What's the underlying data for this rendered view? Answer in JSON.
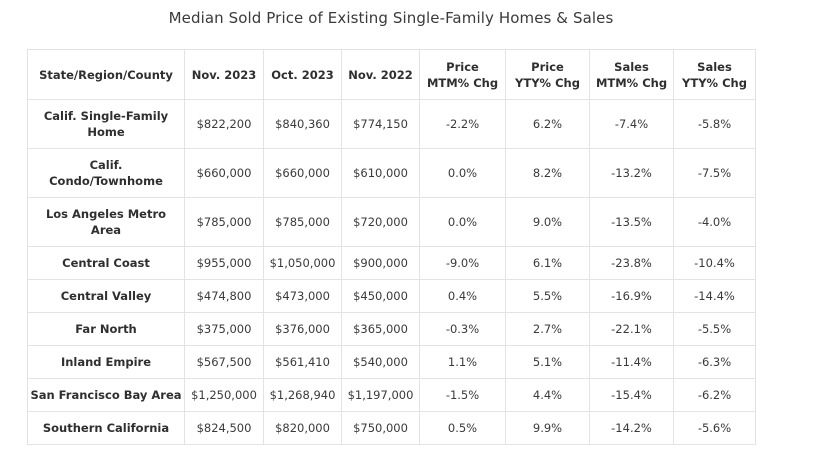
{
  "title": "Median Sold Price of Existing Single-Family Homes & Sales",
  "headers": [
    [
      "State/Region/County"
    ],
    [
      "Nov. 2023"
    ],
    [
      "Oct. 2023"
    ],
    [
      "Nov. 2022"
    ],
    [
      "Price",
      "MTM% Chg"
    ],
    [
      "Price",
      "YTY% Chg"
    ],
    [
      "Sales",
      "MTM% Chg"
    ],
    [
      "Sales",
      "YTY% Chg"
    ]
  ],
  "rows": [
    {
      "region": [
        "Calif. Single-Family",
        "Home"
      ],
      "values": [
        "$822,200",
        "$840,360",
        "$774,150",
        "-2.2%",
        "6.2%",
        "-7.4%",
        "-5.8%"
      ]
    },
    {
      "region": [
        "Calif.",
        "Condo/Townhome"
      ],
      "values": [
        "$660,000",
        "$660,000",
        "$610,000",
        "0.0%",
        "8.2%",
        "-13.2%",
        "-7.5%"
      ]
    },
    {
      "region": [
        "Los Angeles Metro",
        "Area"
      ],
      "values": [
        "$785,000",
        "$785,000",
        "$720,000",
        "0.0%",
        "9.0%",
        "-13.5%",
        "-4.0%"
      ]
    },
    {
      "region": [
        "Central Coast"
      ],
      "values": [
        "$955,000",
        "$1,050,000",
        "$900,000",
        "-9.0%",
        "6.1%",
        "-23.8%",
        "-10.4%"
      ]
    },
    {
      "region": [
        "Central Valley"
      ],
      "values": [
        "$474,800",
        "$473,000",
        "$450,000",
        "0.4%",
        "5.5%",
        "-16.9%",
        "-14.4%"
      ]
    },
    {
      "region": [
        "Far North"
      ],
      "values": [
        "$375,000",
        "$376,000",
        "$365,000",
        "-0.3%",
        "2.7%",
        "-22.1%",
        "-5.5%"
      ]
    },
    {
      "region": [
        "Inland Empire"
      ],
      "values": [
        "$567,500",
        "$561,410",
        "$540,000",
        "1.1%",
        "5.1%",
        "-11.4%",
        "-6.3%"
      ]
    },
    {
      "region": [
        "San Francisco Bay Area"
      ],
      "values": [
        "$1,250,000",
        "$1,268,940",
        "$1,197,000",
        "-1.5%",
        "4.4%",
        "-15.4%",
        "-6.2%"
      ]
    },
    {
      "region": [
        "Southern California"
      ],
      "values": [
        "$824,500",
        "$820,000",
        "$750,000",
        "0.5%",
        "9.9%",
        "-14.2%",
        "-5.6%"
      ]
    }
  ]
}
